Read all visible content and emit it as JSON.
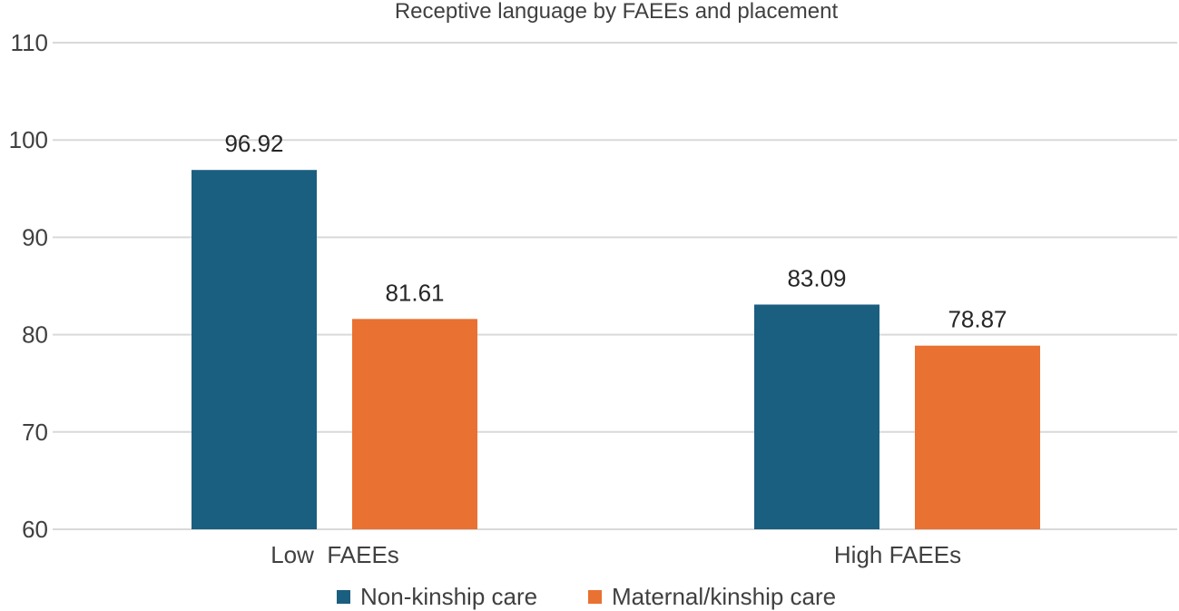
{
  "chart_data": {
    "type": "bar",
    "title": "Receptive language by FAEEs and placement",
    "xlabel": "",
    "ylabel": "",
    "categories": [
      "Low  FAEEs",
      "High FAEEs"
    ],
    "series": [
      {
        "name": "Non-kinship care",
        "values": [
          96.92,
          83.09
        ],
        "color": "#1a5e80"
      },
      {
        "name": "Maternal/kinship care",
        "values": [
          81.61,
          78.87
        ],
        "color": "#e97132"
      }
    ],
    "data_labels": [
      [
        "96.92",
        "83.09"
      ],
      [
        "81.61",
        "78.87"
      ]
    ],
    "ylim": [
      60,
      110
    ],
    "yticks": [
      "60",
      "70",
      "80",
      "90",
      "100",
      "110"
    ],
    "grid": true,
    "legend_position": "bottom"
  }
}
